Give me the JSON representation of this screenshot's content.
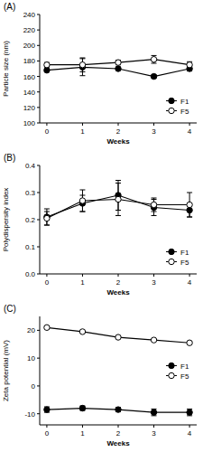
{
  "chart_data": [
    {
      "type": "line",
      "title": "(A)",
      "xlabel": "Weeks",
      "ylabel": "Particle size (nm)",
      "x": [
        0,
        1,
        2,
        3,
        4
      ],
      "xlim": [
        -0.2,
        4.2
      ],
      "xticks": [
        0,
        1,
        2,
        3,
        4
      ],
      "ylim": [
        100,
        240
      ],
      "yticks": [
        100,
        120,
        140,
        160,
        180,
        200,
        220,
        240
      ],
      "legend": "lower right",
      "series": [
        {
          "name": "F1",
          "color": "#000000",
          "marker": "filled_circle",
          "values": [
            168,
            172,
            170,
            160,
            170
          ],
          "errors": [
            2,
            11,
            2,
            2,
            3
          ]
        },
        {
          "name": "F5",
          "color": "#000000",
          "marker": "open_circle",
          "values": [
            175,
            175,
            178,
            182,
            175
          ],
          "errors": [
            3,
            9,
            3,
            5,
            4
          ]
        }
      ]
    },
    {
      "type": "line",
      "title": "(B)",
      "xlabel": "Weeks",
      "ylabel": "Polydispersity index",
      "x": [
        0,
        1,
        2,
        3,
        4
      ],
      "xlim": [
        -0.2,
        4.2
      ],
      "xticks": [
        0,
        1,
        2,
        3,
        4
      ],
      "ylim": [
        0,
        0.4
      ],
      "yticks": [
        {
          "value": 0,
          "label": "0.0"
        },
        {
          "value": 0.1,
          "label": "0.1"
        },
        {
          "value": 0.2,
          "label": "0.2"
        },
        {
          "value": 0.3,
          "label": "0.3"
        },
        {
          "value": 0.4,
          "label": "0.4"
        }
      ],
      "legend": "lower right",
      "series": [
        {
          "name": "F1",
          "color": "#000000",
          "marker": "filled_circle",
          "values": [
            0.21,
            0.26,
            0.29,
            0.245,
            0.235
          ],
          "errors": [
            0.03,
            0.03,
            0.055,
            0.03,
            0.025
          ]
        },
        {
          "name": "F5",
          "color": "#000000",
          "marker": "open_circle",
          "values": [
            0.205,
            0.27,
            0.275,
            0.255,
            0.255
          ],
          "errors": [
            0.025,
            0.04,
            0.06,
            0.025,
            0.045
          ]
        }
      ]
    },
    {
      "type": "line",
      "title": "(C)",
      "xlabel": "Weeks",
      "ylabel": "Zeta potential (mV)",
      "x": [
        0,
        1,
        2,
        3,
        4
      ],
      "xlim": [
        -0.2,
        4.2
      ],
      "xticks": [
        0,
        1,
        2,
        3,
        4
      ],
      "ylim": [
        -14,
        25
      ],
      "yticks": [
        -10,
        0,
        10,
        20
      ],
      "legend": "center right",
      "series": [
        {
          "name": "F1",
          "color": "#000000",
          "marker": "filled_circle",
          "values": [
            -8.5,
            -8,
            -8.5,
            -9.5,
            -9.5
          ],
          "errors": [
            1,
            0.8,
            0.8,
            1.2,
            1.2
          ]
        },
        {
          "name": "F5",
          "color": "#000000",
          "marker": "open_circle",
          "values": [
            21,
            19.5,
            17.5,
            16.5,
            15.5
          ],
          "errors": [
            0.5,
            0.5,
            0.4,
            0.4,
            0.5
          ]
        }
      ]
    }
  ]
}
